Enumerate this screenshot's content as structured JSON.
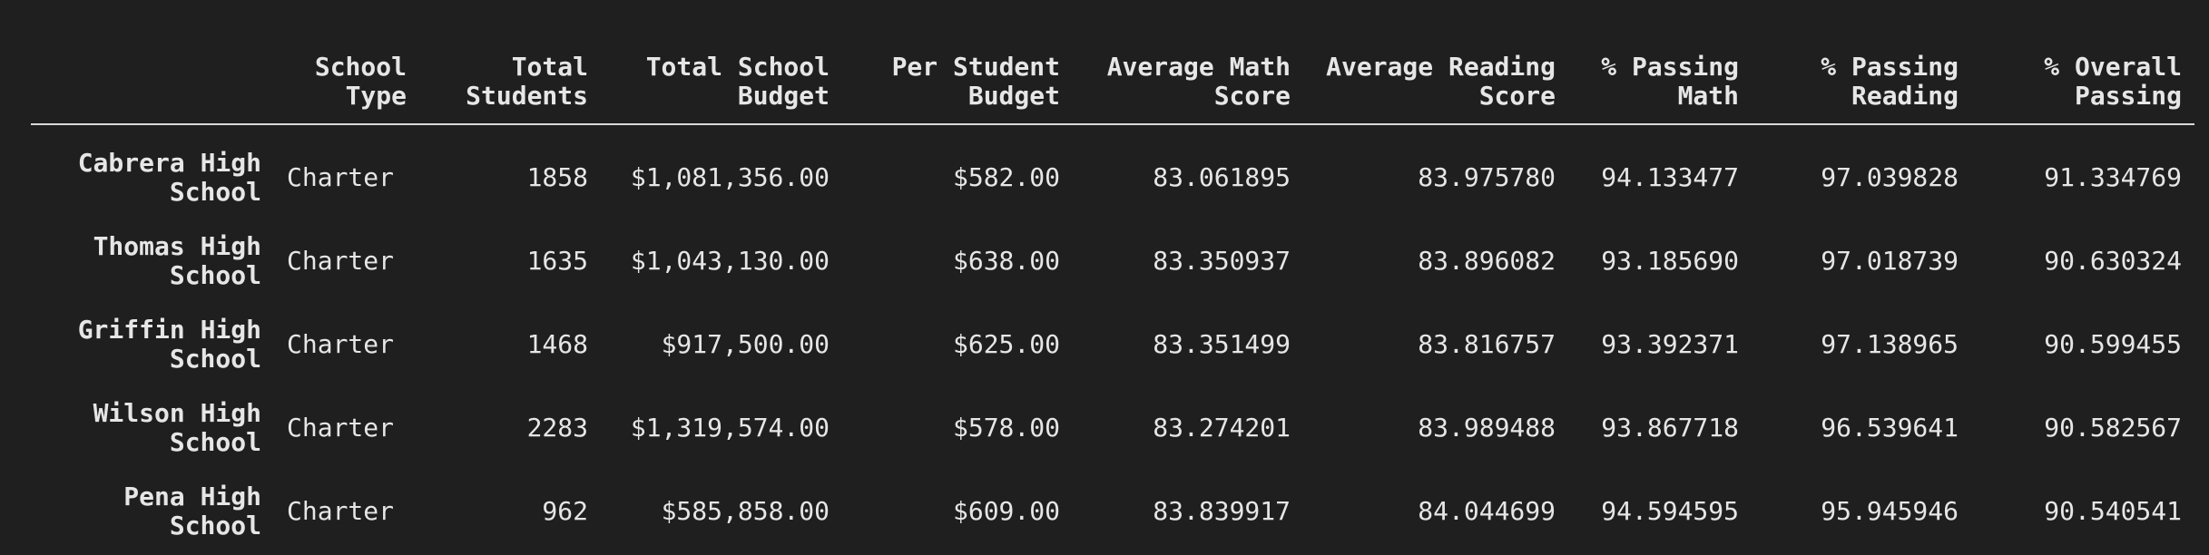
{
  "columns": [
    "",
    "School Type",
    "Total Students",
    "Total School Budget",
    "Per Student Budget",
    "Average Math Score",
    "Average Reading Score",
    "% Passing Math",
    "% Passing Reading",
    "% Overall Passing"
  ],
  "rows": [
    {
      "school": "Cabrera High School",
      "type": "Charter",
      "students": "1858",
      "budget": "$1,081,356.00",
      "per_student": "$582.00",
      "avg_math": "83.061895",
      "avg_reading": "83.975780",
      "pct_math": "94.133477",
      "pct_reading": "97.039828",
      "pct_overall": "91.334769"
    },
    {
      "school": "Thomas High School",
      "type": "Charter",
      "students": "1635",
      "budget": "$1,043,130.00",
      "per_student": "$638.00",
      "avg_math": "83.350937",
      "avg_reading": "83.896082",
      "pct_math": "93.185690",
      "pct_reading": "97.018739",
      "pct_overall": "90.630324"
    },
    {
      "school": "Griffin High School",
      "type": "Charter",
      "students": "1468",
      "budget": "$917,500.00",
      "per_student": "$625.00",
      "avg_math": "83.351499",
      "avg_reading": "83.816757",
      "pct_math": "93.392371",
      "pct_reading": "97.138965",
      "pct_overall": "90.599455"
    },
    {
      "school": "Wilson High School",
      "type": "Charter",
      "students": "2283",
      "budget": "$1,319,574.00",
      "per_student": "$578.00",
      "avg_math": "83.274201",
      "avg_reading": "83.989488",
      "pct_math": "93.867718",
      "pct_reading": "96.539641",
      "pct_overall": "90.582567"
    },
    {
      "school": "Pena High School",
      "type": "Charter",
      "students": "962",
      "budget": "$585,858.00",
      "per_student": "$609.00",
      "avg_math": "83.839917",
      "avg_reading": "84.044699",
      "pct_math": "94.594595",
      "pct_reading": "95.945946",
      "pct_overall": "90.540541"
    }
  ]
}
